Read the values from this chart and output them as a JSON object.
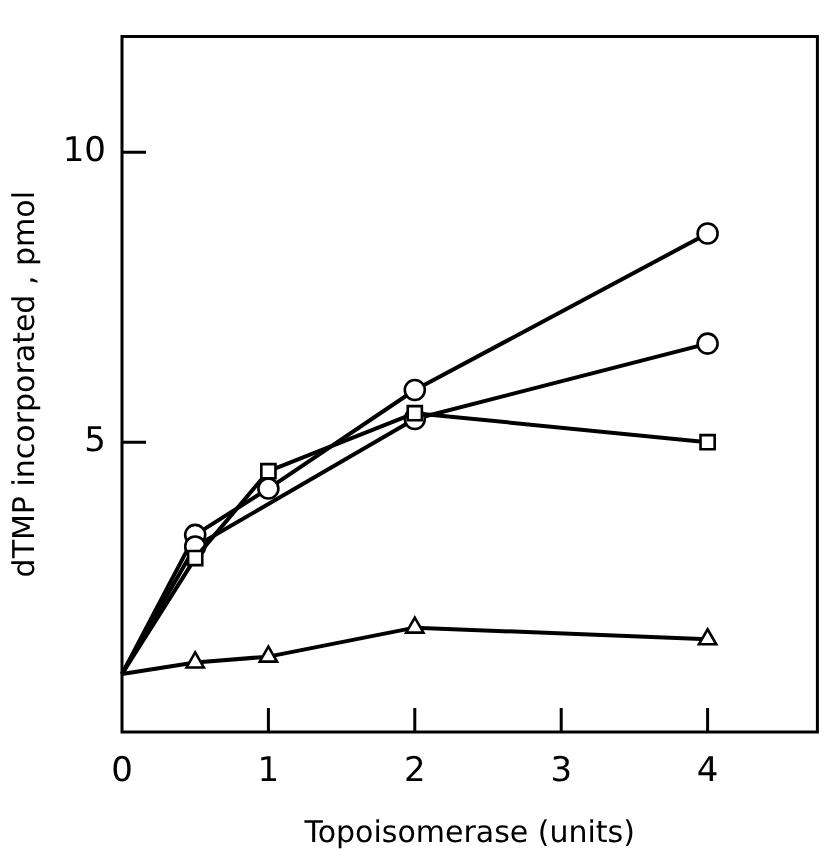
{
  "chart_data": {
    "type": "line",
    "xlabel": "Topoisomerase (units)",
    "ylabel": "dTMP incorporated , pmol",
    "xlim": [
      0,
      4.75
    ],
    "xticks": [
      0,
      1,
      2,
      3,
      4
    ],
    "ylim": [
      0,
      12
    ],
    "yticks": [
      5,
      10
    ],
    "grid": false,
    "legend": false,
    "line_style": "solid",
    "series": [
      {
        "color": "#000000",
        "marker": "circle",
        "x": [
          0,
          0.5,
          1,
          2,
          4
        ],
        "values": [
          1,
          3.4,
          4.2,
          5.9,
          8.6
        ]
      },
      {
        "color": "#000000",
        "marker": "circle",
        "x": [
          0,
          0.5,
          2,
          4
        ],
        "values": [
          1,
          3.2,
          5.4,
          6.7
        ]
      },
      {
        "color": "#000000",
        "marker": "square",
        "x": [
          0,
          0.5,
          1,
          2,
          4
        ],
        "values": [
          1,
          3.0,
          4.5,
          5.5,
          5.0
        ]
      },
      {
        "color": "#000000",
        "marker": "triangle",
        "x": [
          0,
          0.5,
          1,
          2,
          4
        ],
        "values": [
          1,
          1.2,
          1.3,
          1.8,
          1.6
        ]
      }
    ]
  }
}
